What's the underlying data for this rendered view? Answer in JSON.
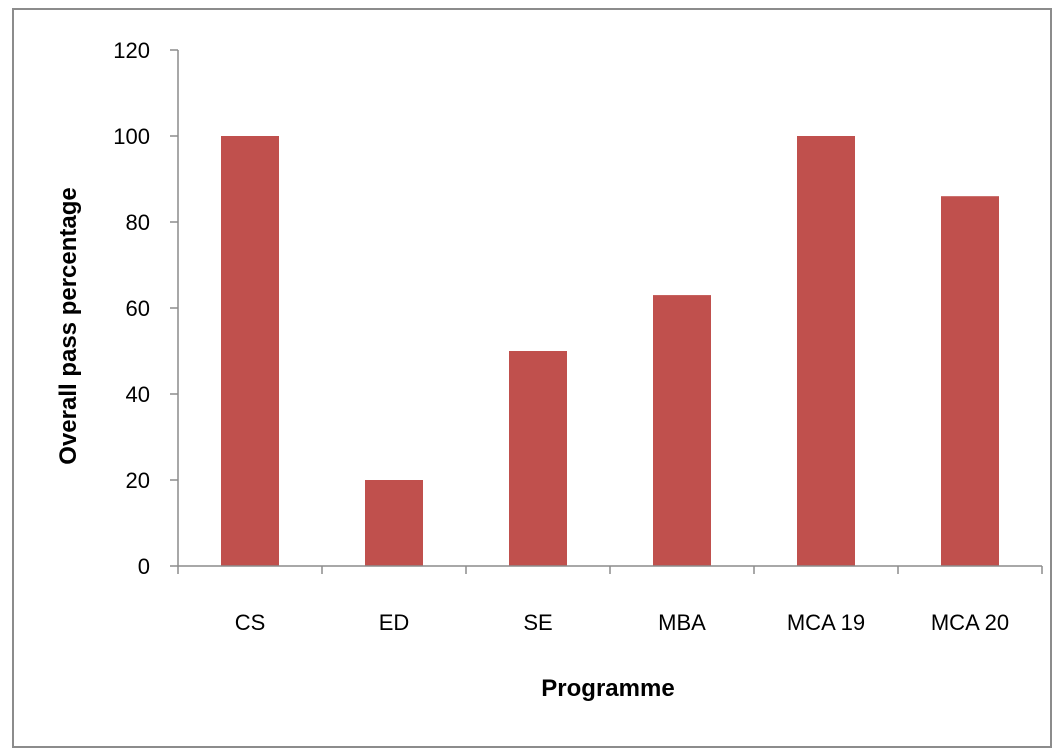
{
  "chart_data": {
    "type": "bar",
    "categories": [
      "CS",
      "ED",
      "SE",
      "MBA",
      "MCA 19",
      "MCA 20"
    ],
    "values": [
      100,
      20,
      50,
      63,
      100,
      86
    ],
    "title": "",
    "xlabel": "Programme",
    "ylabel": "Overall pass percentage",
    "ylim": [
      0,
      120
    ],
    "yticks": [
      "0",
      "20",
      "40",
      "60",
      "80",
      "100",
      "120"
    ],
    "grid": false,
    "legend": "none",
    "bar_color": "#c0504d"
  }
}
